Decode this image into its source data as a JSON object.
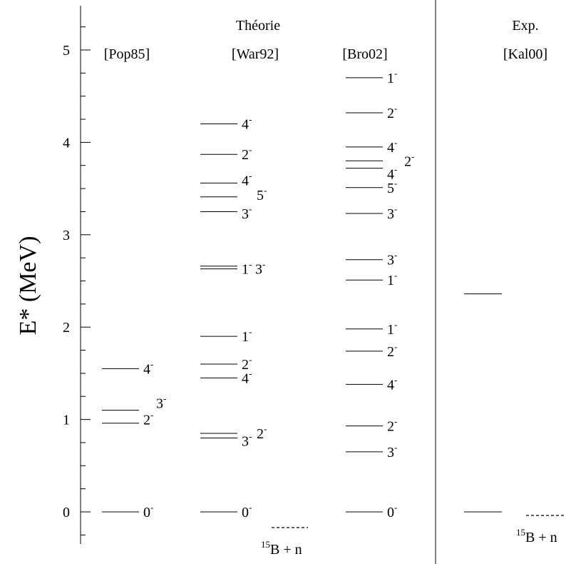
{
  "chart_data": {
    "type": "level_scheme",
    "ylabel": "E* (MeV)",
    "ylim": [
      -0.5,
      5.5
    ],
    "yticks": [
      "0",
      "1",
      "2",
      "3",
      "4",
      "5"
    ],
    "group_headers": [
      {
        "id": "theory",
        "label": "Théorie"
      },
      {
        "id": "exp",
        "label": "Exp."
      }
    ],
    "columns": [
      {
        "id": "pop85",
        "header": "[Pop85]",
        "levels": [
          {
            "e": 1.55,
            "j": "4",
            "parity": "-"
          },
          {
            "e": 1.1,
            "j": "3",
            "parity": "-"
          },
          {
            "e": 0.96,
            "j": "2",
            "parity": "-"
          },
          {
            "e": 0.0,
            "j": "0",
            "parity": "-"
          }
        ]
      },
      {
        "id": "war92",
        "header": "[War92]",
        "levels": [
          {
            "e": 4.2,
            "j": "4",
            "parity": "-"
          },
          {
            "e": 3.87,
            "j": "2",
            "parity": "-"
          },
          {
            "e": 3.56,
            "j": "4",
            "parity": "-"
          },
          {
            "e": 3.41,
            "j": "5",
            "parity": "-"
          },
          {
            "e": 3.25,
            "j": "3",
            "parity": "-"
          },
          {
            "e": 2.66,
            "j": "3",
            "parity": "-"
          },
          {
            "e": 2.63,
            "j": "1",
            "parity": "-"
          },
          {
            "e": 1.9,
            "j": "1",
            "parity": "-"
          },
          {
            "e": 1.6,
            "j": "2",
            "parity": "-"
          },
          {
            "e": 1.45,
            "j": "4",
            "parity": "-"
          },
          {
            "e": 0.85,
            "j": "2",
            "parity": "-"
          },
          {
            "e": 0.8,
            "j": "3",
            "parity": "-"
          },
          {
            "e": 0.0,
            "j": "0",
            "parity": "-"
          }
        ],
        "threshold": {
          "e": -0.17,
          "label": "B + n",
          "mass": "15"
        }
      },
      {
        "id": "bro02",
        "header": "[Bro02]",
        "levels": [
          {
            "e": 4.7,
            "j": "1",
            "parity": "-"
          },
          {
            "e": 4.32,
            "j": "2",
            "parity": "-"
          },
          {
            "e": 3.95,
            "j": "4",
            "parity": "-"
          },
          {
            "e": 3.8,
            "j": "2",
            "parity": "-"
          },
          {
            "e": 3.72,
            "j": "4",
            "parity": "-"
          },
          {
            "e": 3.51,
            "j": "5",
            "parity": "-"
          },
          {
            "e": 3.23,
            "j": "3",
            "parity": "-"
          },
          {
            "e": 2.73,
            "j": "3",
            "parity": "-"
          },
          {
            "e": 2.51,
            "j": "1",
            "parity": "-"
          },
          {
            "e": 1.98,
            "j": "1",
            "parity": "-"
          },
          {
            "e": 1.74,
            "j": "2",
            "parity": "-"
          },
          {
            "e": 1.38,
            "j": "4",
            "parity": "-"
          },
          {
            "e": 0.93,
            "j": "2",
            "parity": "-"
          },
          {
            "e": 0.65,
            "j": "3",
            "parity": "-"
          },
          {
            "e": 0.0,
            "j": "0",
            "parity": "-"
          }
        ]
      },
      {
        "id": "kal00",
        "header": "[Kal00]",
        "levels": [
          {
            "e": 2.36,
            "j": "",
            "parity": ""
          },
          {
            "e": 0.0,
            "j": "",
            "parity": ""
          }
        ],
        "threshold": {
          "e": 0.0,
          "label": "B + n",
          "mass": "15"
        }
      }
    ]
  }
}
